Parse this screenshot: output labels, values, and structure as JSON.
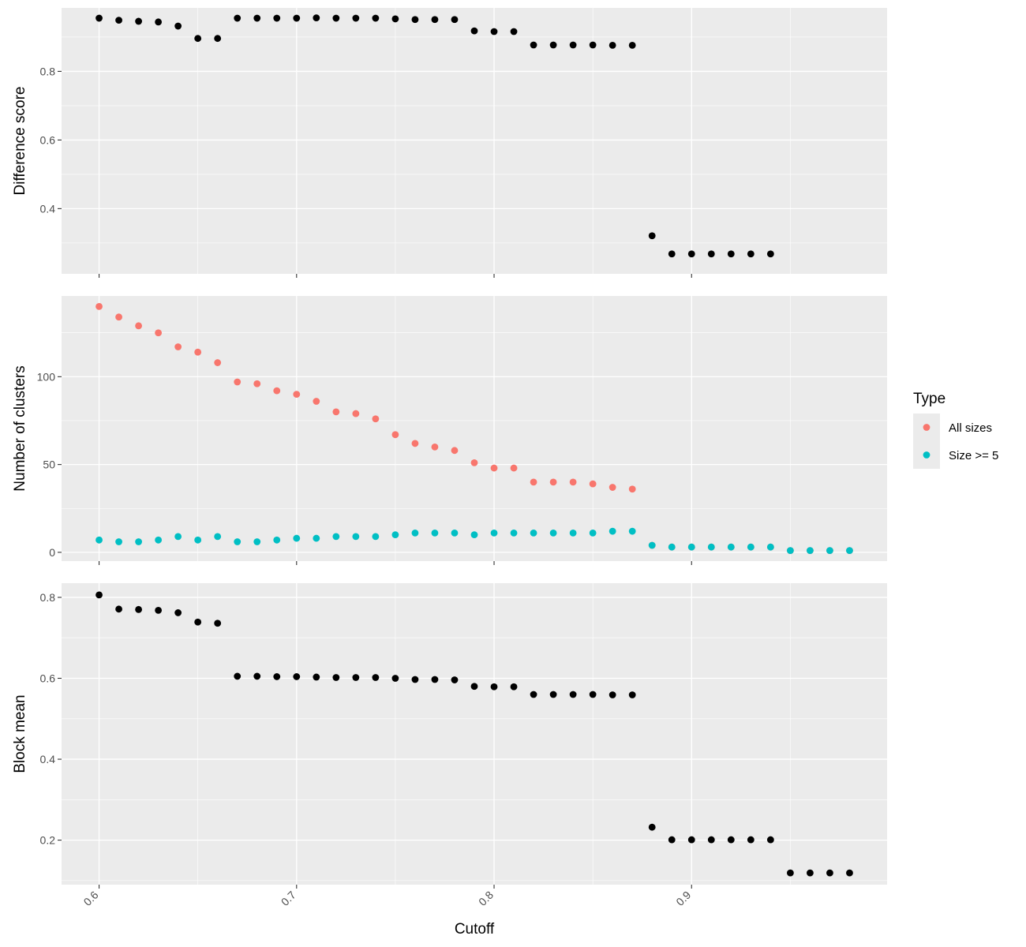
{
  "chart_data": [
    {
      "type": "scatter",
      "ylabel": "Difference score",
      "xlabel": "",
      "xlim": [
        0.581,
        0.999
      ],
      "ylim": [
        0.21,
        0.985
      ],
      "y_ticks": [
        0.4,
        0.6,
        0.8
      ],
      "y_tick_labels": [
        "0.4",
        "0.6",
        "0.8"
      ],
      "grid": true,
      "series": [
        {
          "color": "#000000",
          "x": [
            0.6,
            0.61,
            0.62,
            0.63,
            0.64,
            0.65,
            0.66,
            0.67,
            0.68,
            0.69,
            0.7,
            0.71,
            0.72,
            0.73,
            0.74,
            0.75,
            0.76,
            0.77,
            0.78,
            0.79,
            0.8,
            0.81,
            0.82,
            0.83,
            0.84,
            0.85,
            0.86,
            0.87,
            0.88,
            0.89,
            0.9,
            0.91,
            0.92,
            0.93,
            0.94
          ],
          "y": [
            0.955,
            0.949,
            0.946,
            0.944,
            0.932,
            0.896,
            0.896,
            0.955,
            0.955,
            0.955,
            0.955,
            0.956,
            0.955,
            0.955,
            0.955,
            0.953,
            0.951,
            0.951,
            0.951,
            0.918,
            0.916,
            0.916,
            0.877,
            0.877,
            0.877,
            0.877,
            0.876,
            0.876,
            0.321,
            0.268,
            0.268,
            0.268,
            0.268,
            0.268,
            0.268
          ]
        }
      ]
    },
    {
      "type": "scatter",
      "ylabel": "Number of clusters",
      "xlabel": "",
      "xlim": [
        0.581,
        0.999
      ],
      "ylim": [
        -5,
        146
      ],
      "y_ticks": [
        0,
        50,
        100
      ],
      "y_tick_labels": [
        "0",
        "50",
        "100"
      ],
      "grid": true,
      "legend": {
        "title": "Type",
        "position": "right",
        "entries": [
          {
            "label": "All sizes",
            "color": "#F8766D"
          },
          {
            "label": "Size >= 5",
            "color": "#00BFC4"
          }
        ]
      },
      "series": [
        {
          "name": "All sizes",
          "color": "#F8766D",
          "x": [
            0.6,
            0.61,
            0.62,
            0.63,
            0.64,
            0.65,
            0.66,
            0.67,
            0.68,
            0.69,
            0.7,
            0.71,
            0.72,
            0.73,
            0.74,
            0.75,
            0.76,
            0.77,
            0.78,
            0.79,
            0.8,
            0.81,
            0.82,
            0.83,
            0.84,
            0.85,
            0.86,
            0.87,
            0.88,
            0.89,
            0.9,
            0.91,
            0.92,
            0.93,
            0.94,
            0.95,
            0.96,
            0.97,
            0.98
          ],
          "y": [
            140,
            134,
            129,
            125,
            117,
            114,
            108,
            97,
            96,
            92,
            90,
            86,
            80,
            79,
            76,
            67,
            62,
            60,
            58,
            51,
            48,
            48,
            40,
            40,
            40,
            39,
            37,
            36,
            4,
            3,
            3,
            3,
            3,
            3,
            3,
            1,
            1,
            1,
            1
          ]
        },
        {
          "name": "Size >= 5",
          "color": "#00BFC4",
          "x": [
            0.6,
            0.61,
            0.62,
            0.63,
            0.64,
            0.65,
            0.66,
            0.67,
            0.68,
            0.69,
            0.7,
            0.71,
            0.72,
            0.73,
            0.74,
            0.75,
            0.76,
            0.77,
            0.78,
            0.79,
            0.8,
            0.81,
            0.82,
            0.83,
            0.84,
            0.85,
            0.86,
            0.87,
            0.88,
            0.89,
            0.9,
            0.91,
            0.92,
            0.93,
            0.94,
            0.95,
            0.96,
            0.97,
            0.98
          ],
          "y": [
            7,
            6,
            6,
            7,
            9,
            7,
            9,
            6,
            6,
            7,
            8,
            8,
            9,
            9,
            9,
            10,
            11,
            11,
            11,
            10,
            11,
            11,
            11,
            11,
            11,
            11,
            12,
            12,
            4,
            3,
            3,
            3,
            3,
            3,
            3,
            1,
            1,
            1,
            1
          ]
        }
      ]
    },
    {
      "type": "scatter",
      "ylabel": "Block mean",
      "xlabel": "Cutoff",
      "xlim": [
        0.581,
        0.999
      ],
      "ylim": [
        0.09,
        0.835
      ],
      "y_ticks": [
        0.2,
        0.4,
        0.6,
        0.8
      ],
      "y_tick_labels": [
        "0.2",
        "0.4",
        "0.6",
        "0.8"
      ],
      "x_ticks": [
        0.6,
        0.7,
        0.8,
        0.9
      ],
      "x_tick_labels": [
        "0.6",
        "0.7",
        "0.8",
        "0.9"
      ],
      "grid": true,
      "series": [
        {
          "color": "#000000",
          "x": [
            0.6,
            0.61,
            0.62,
            0.63,
            0.64,
            0.65,
            0.66,
            0.67,
            0.68,
            0.69,
            0.7,
            0.71,
            0.72,
            0.73,
            0.74,
            0.75,
            0.76,
            0.77,
            0.78,
            0.79,
            0.8,
            0.81,
            0.82,
            0.83,
            0.84,
            0.85,
            0.86,
            0.87,
            0.88,
            0.89,
            0.9,
            0.91,
            0.92,
            0.93,
            0.94,
            0.95,
            0.96,
            0.97,
            0.98
          ],
          "y": [
            0.806,
            0.771,
            0.77,
            0.768,
            0.762,
            0.739,
            0.736,
            0.605,
            0.605,
            0.604,
            0.604,
            0.603,
            0.602,
            0.602,
            0.602,
            0.6,
            0.597,
            0.597,
            0.596,
            0.58,
            0.579,
            0.579,
            0.56,
            0.56,
            0.56,
            0.56,
            0.559,
            0.559,
            0.232,
            0.201,
            0.201,
            0.201,
            0.201,
            0.201,
            0.201,
            0.119,
            0.119,
            0.119,
            0.119
          ]
        }
      ]
    }
  ]
}
